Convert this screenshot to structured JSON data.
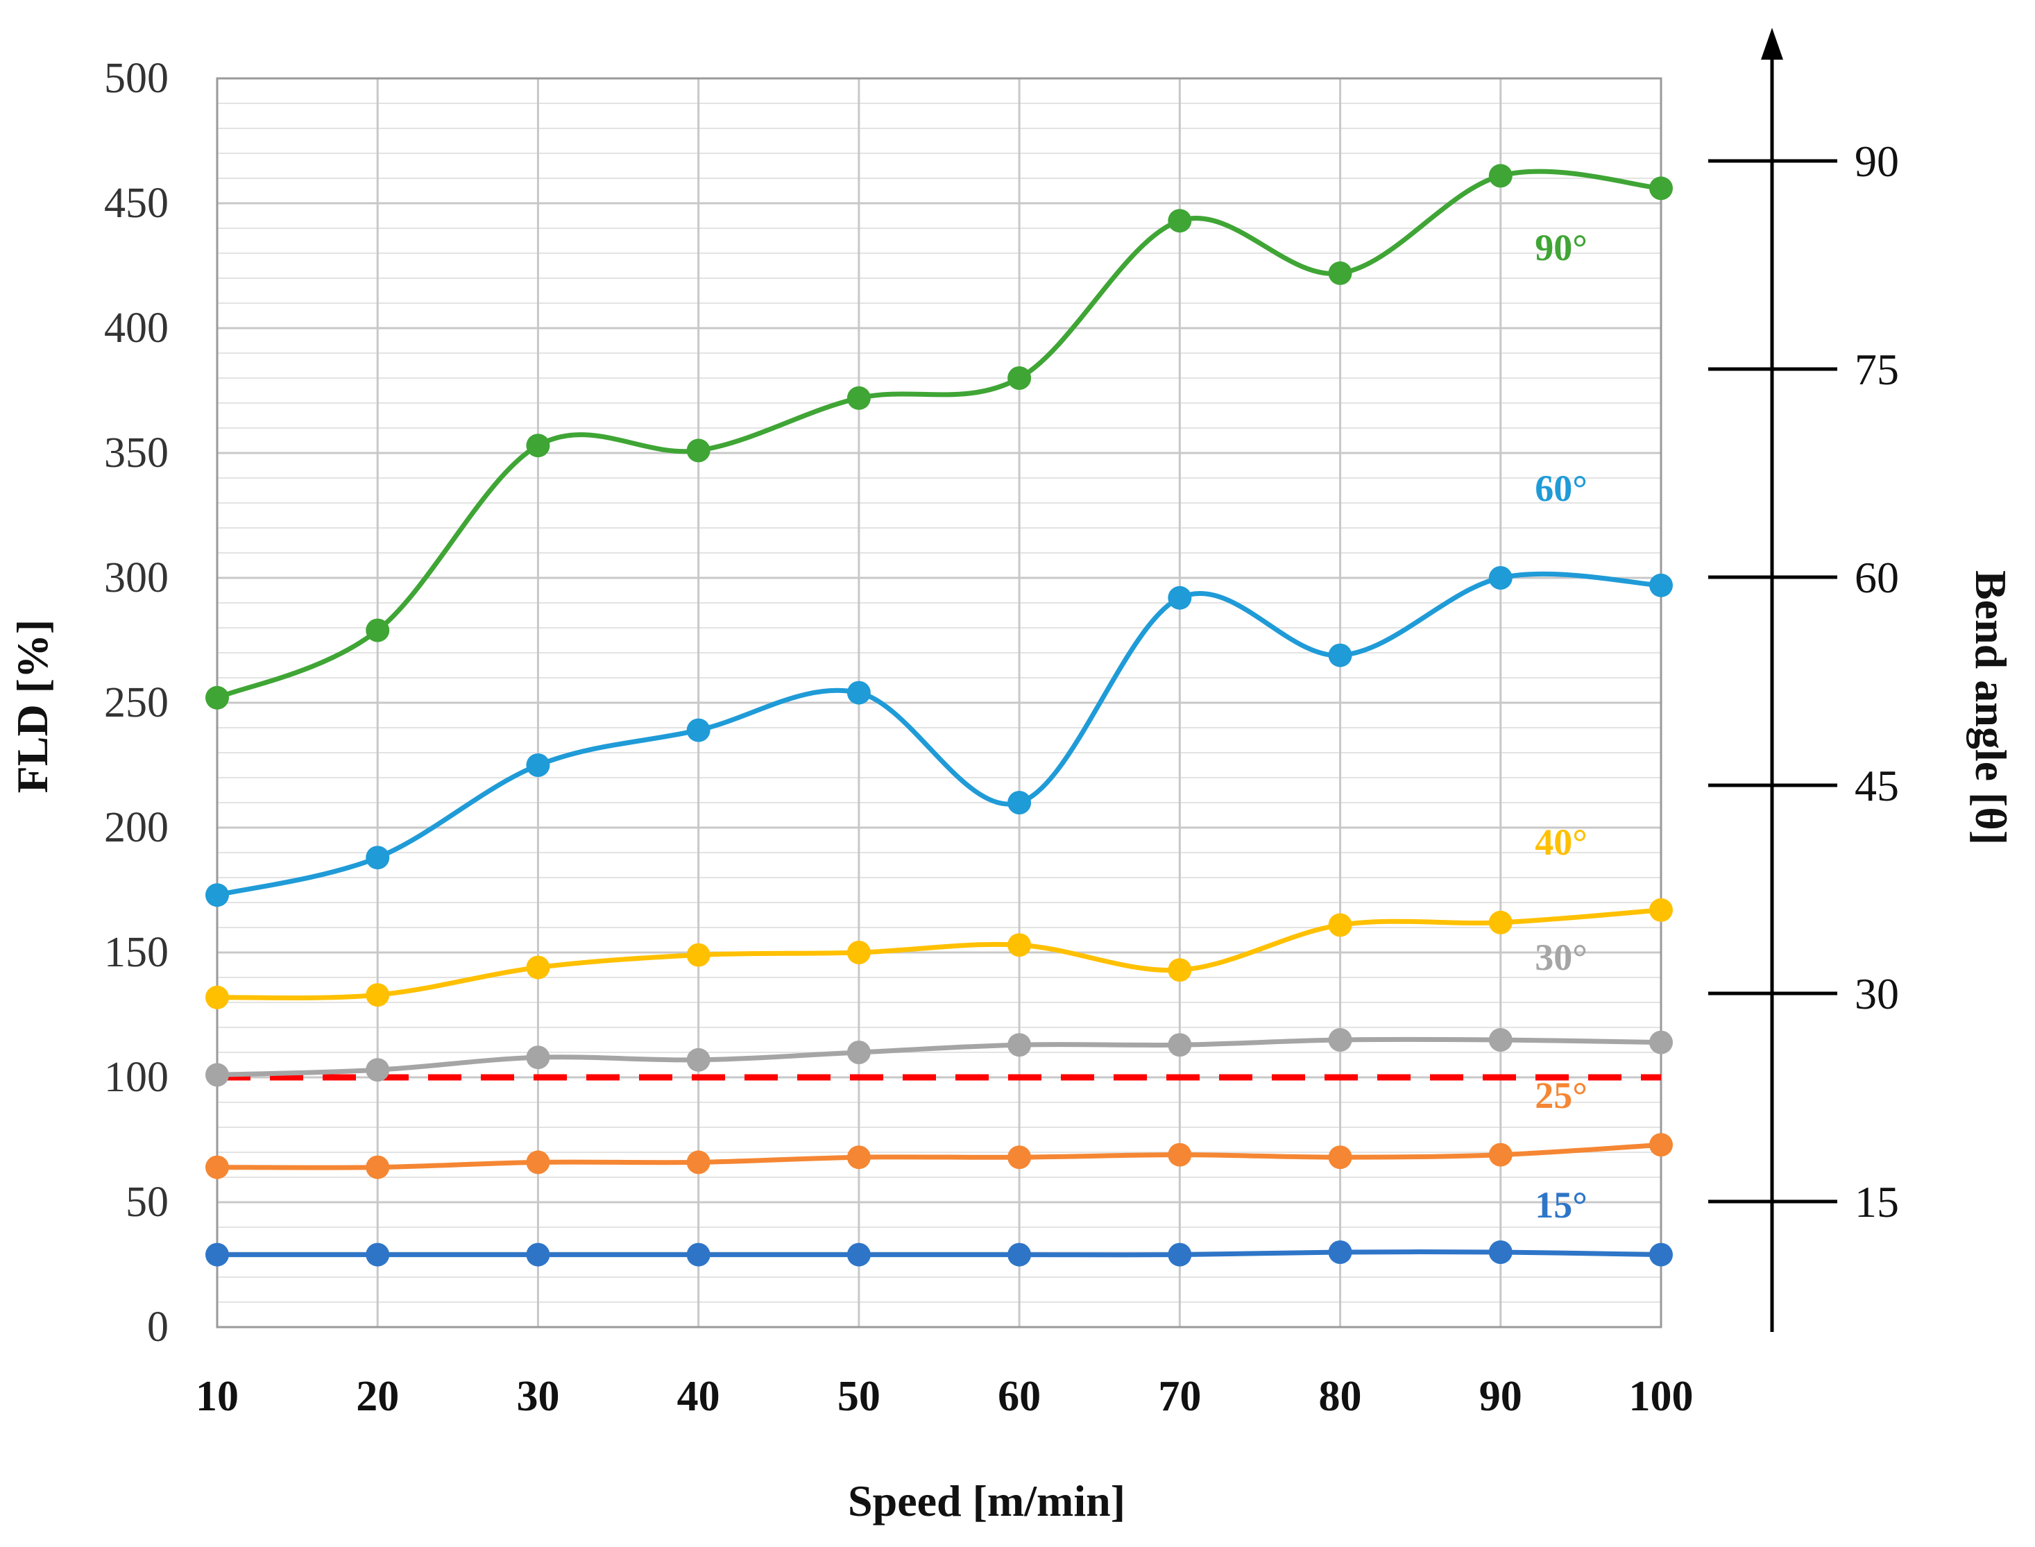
{
  "chart_data": {
    "type": "line",
    "title": "",
    "xlabel": "Speed [m/min]",
    "ylabel": "FLD [%]",
    "right_axis_label": "Bend angle [θ]",
    "x": [
      10,
      20,
      30,
      40,
      50,
      60,
      70,
      80,
      90,
      100
    ],
    "xlim": [
      10,
      100
    ],
    "ylim": [
      0,
      500
    ],
    "y_ticks": [
      0,
      50,
      100,
      150,
      200,
      250,
      300,
      350,
      400,
      450,
      500
    ],
    "y_minor_step": 10,
    "grid": true,
    "right_axis": {
      "label": "Bend angle [θ]",
      "ticks": [
        15,
        30,
        45,
        60,
        75,
        90
      ],
      "range": [
        5,
        98
      ]
    },
    "reference_line": {
      "y": 100,
      "color": "#ff0000",
      "style": "dashed"
    },
    "series": [
      {
        "name": "90°",
        "color": "#3fa535",
        "values": [
          252,
          279,
          353,
          351,
          372,
          380,
          443,
          422,
          461,
          456
        ]
      },
      {
        "name": "60°",
        "color": "#1f9bd7",
        "values": [
          173,
          188,
          225,
          239,
          254,
          210,
          292,
          269,
          300,
          297
        ]
      },
      {
        "name": "40°",
        "color": "#ffc000",
        "values": [
          132,
          133,
          144,
          149,
          150,
          153,
          143,
          161,
          162,
          167
        ]
      },
      {
        "name": "30°",
        "color": "#a5a5a5",
        "values": [
          101,
          103,
          108,
          107,
          110,
          113,
          113,
          115,
          115,
          114
        ]
      },
      {
        "name": "25°",
        "color": "#f58633",
        "values": [
          64,
          64,
          66,
          66,
          68,
          68,
          69,
          68,
          69,
          73
        ]
      },
      {
        "name": "15°",
        "color": "#2e75c8",
        "values": [
          29,
          29,
          29,
          29,
          29,
          29,
          29,
          30,
          30,
          29
        ]
      }
    ]
  }
}
